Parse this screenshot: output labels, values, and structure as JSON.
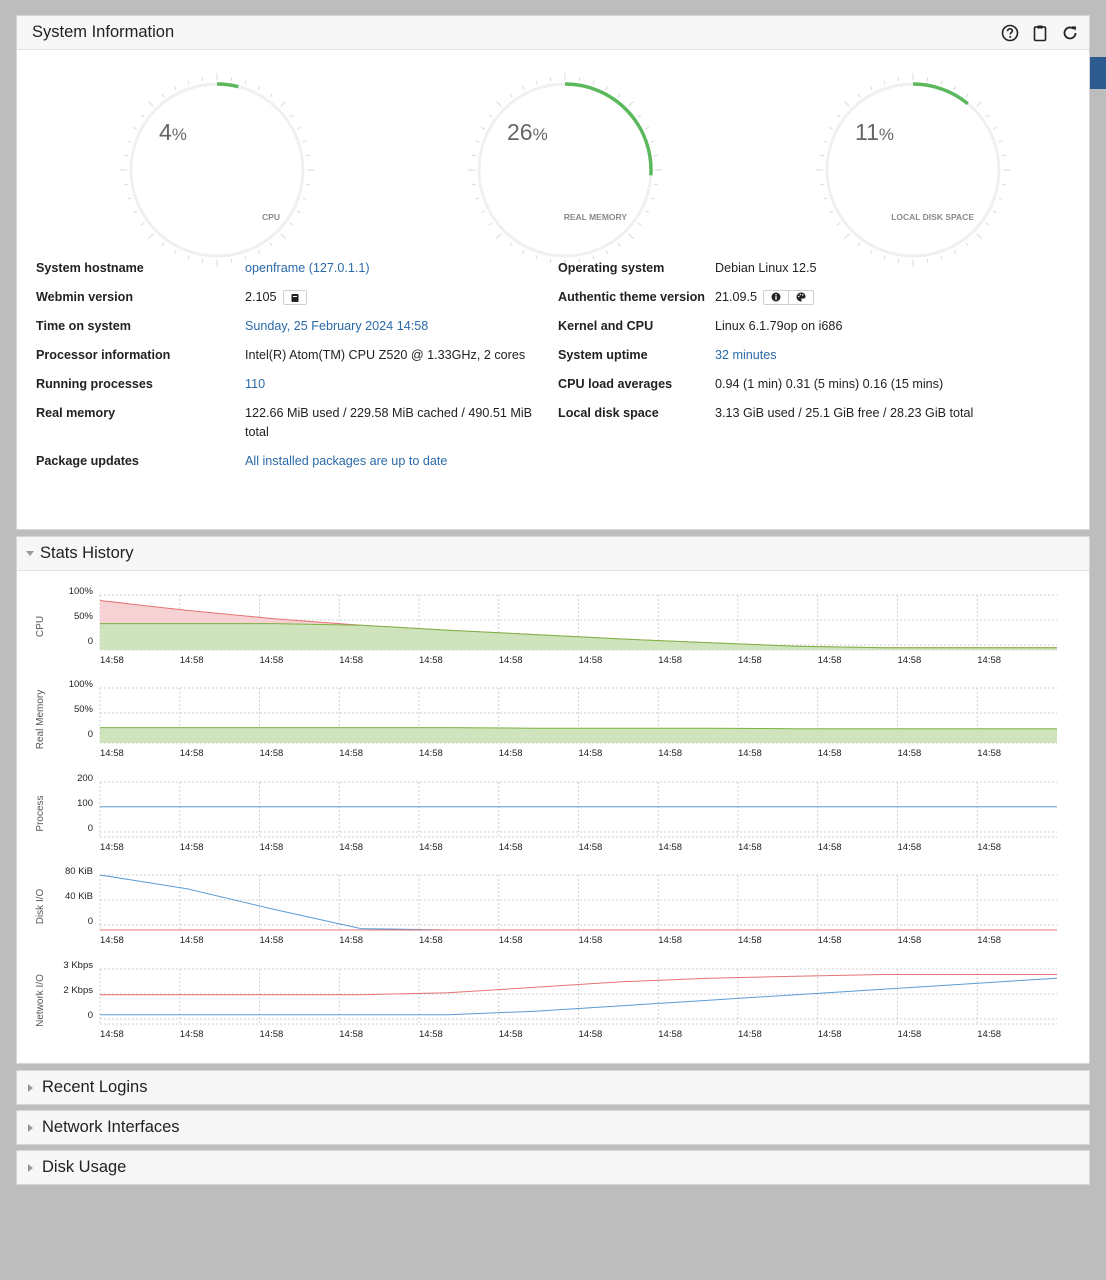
{
  "sysinfo": {
    "title": "System Information",
    "gauges": [
      {
        "value": "4",
        "unit": "%",
        "label": "CPU",
        "fraction": 0.04
      },
      {
        "value": "26",
        "unit": "%",
        "label": "REAL MEMORY",
        "fraction": 0.26
      },
      {
        "value": "11",
        "unit": "%",
        "label": "LOCAL DISK SPACE",
        "fraction": 0.11
      }
    ],
    "left_rows": [
      {
        "label": "System hostname",
        "value": "openframe (127.0.1.1)"
      },
      {
        "label": "Webmin version",
        "value": "2.105"
      },
      {
        "label": "Time on system",
        "value": "Sunday, 25 February 2024 14:58"
      },
      {
        "label": "Processor information",
        "value": "Intel(R) Atom(TM) CPU Z520 @ 1.33GHz, 2 cores"
      },
      {
        "label": "Running processes",
        "value": "110"
      },
      {
        "label": "Real memory",
        "value": "122.66 MiB used / 229.58 MiB cached / 490.51 MiB",
        "value2": "total"
      },
      {
        "label": "Package updates",
        "value": "All installed packages are up to date"
      }
    ],
    "right_rows": [
      {
        "label": "Operating system",
        "value": "Debian Linux 12.5"
      },
      {
        "label": "Authentic theme version",
        "value": "21.09.5"
      },
      {
        "label": "Kernel and CPU",
        "value": "Linux 6.1.79op on i686"
      },
      {
        "label": "System uptime",
        "value": "32 minutes"
      },
      {
        "label": "CPU load averages",
        "value": "0.94 (1 min) 0.31 (5 mins) 0.16 (15 mins)"
      },
      {
        "label": "Local disk space",
        "value": "3.13 GiB used / 25.1 GiB free / 28.23 GiB total"
      }
    ]
  },
  "stats": {
    "title": "Stats History"
  },
  "chart_data": [
    {
      "type": "area",
      "ylabel": "CPU",
      "yticks": [
        "100%",
        "50%",
        "0"
      ],
      "ylim": [
        0,
        100
      ],
      "x": [
        "14:58",
        "14:58",
        "14:58",
        "14:58",
        "14:58",
        "14:58",
        "14:58",
        "14:58",
        "14:58",
        "14:58",
        "14:58",
        "14:58"
      ],
      "series": [
        {
          "name": "",
          "color": "#e57373",
          "fill": "#f6d2d4",
          "values": [
            90,
            72,
            57,
            45,
            36,
            28,
            20,
            13,
            7,
            4,
            4,
            4
          ]
        },
        {
          "name": "",
          "color": "#7cb342",
          "fill": "#cfe3bd",
          "values": [
            48,
            48,
            48,
            45,
            36,
            28,
            20,
            13,
            7,
            4,
            4,
            4
          ]
        }
      ]
    },
    {
      "type": "area",
      "ylabel": "Real Memory",
      "yticks": [
        "100%",
        "50%",
        "0"
      ],
      "ylim": [
        0,
        100
      ],
      "x": [
        "14:58",
        "14:58",
        "14:58",
        "14:58",
        "14:58",
        "14:58",
        "14:58",
        "14:58",
        "14:58",
        "14:58",
        "14:58",
        "14:58"
      ],
      "series": [
        {
          "name": "",
          "color": "#7cb342",
          "fill": "#cfe3bd",
          "values": [
            28,
            28,
            28,
            28,
            28,
            27,
            27,
            27,
            26,
            26,
            26,
            26
          ]
        }
      ]
    },
    {
      "type": "line",
      "ylabel": "Process",
      "yticks": [
        "200",
        "100",
        "0"
      ],
      "ylim": [
        0,
        200
      ],
      "x": [
        "14:58",
        "14:58",
        "14:58",
        "14:58",
        "14:58",
        "14:58",
        "14:58",
        "14:58",
        "14:58",
        "14:58",
        "14:58",
        "14:58"
      ],
      "series": [
        {
          "name": "",
          "color": "#5b9bd5",
          "values": [
            110,
            110,
            110,
            110,
            110,
            110,
            110,
            110,
            110,
            110,
            110,
            110
          ]
        }
      ]
    },
    {
      "type": "line",
      "ylabel": "Disk I/O",
      "yticks": [
        "80 KiB",
        "40 KiB",
        "0"
      ],
      "ylim": [
        0,
        80
      ],
      "x": [
        "14:58",
        "14:58",
        "14:58",
        "14:58",
        "14:58",
        "14:58",
        "14:58",
        "14:58",
        "14:58",
        "14:58",
        "14:58",
        "14:58"
      ],
      "series": [
        {
          "name": "",
          "color": "#5b9bd5",
          "values": [
            80,
            60,
            30,
            2,
            0,
            0,
            0,
            0,
            0,
            0,
            0,
            0
          ]
        },
        {
          "name": "",
          "color": "#e57373",
          "values": [
            0,
            0,
            0,
            0,
            0,
            0,
            0,
            0,
            0,
            0,
            0,
            0
          ]
        }
      ]
    },
    {
      "type": "line",
      "ylabel": "Network I/O",
      "yticks": [
        "3 Kbps",
        "2 Kbps",
        "0"
      ],
      "ylim": [
        0,
        3
      ],
      "x": [
        "14:58",
        "14:58",
        "14:58",
        "14:58",
        "14:58",
        "14:58",
        "14:58",
        "14:58",
        "14:58",
        "14:58",
        "14:58",
        "14:58"
      ],
      "series": [
        {
          "name": "",
          "color": "#e57373",
          "values": [
            1.6,
            1.6,
            1.6,
            1.6,
            1.7,
            2.0,
            2.3,
            2.5,
            2.6,
            2.7,
            2.7,
            2.7
          ]
        },
        {
          "name": "",
          "color": "#5b9bd5",
          "values": [
            0.5,
            0.5,
            0.5,
            0.5,
            0.5,
            0.7,
            1.0,
            1.3,
            1.6,
            1.9,
            2.2,
            2.5
          ]
        }
      ]
    }
  ],
  "collapsed": [
    {
      "title": "Recent Logins"
    },
    {
      "title": "Network Interfaces"
    },
    {
      "title": "Disk Usage"
    }
  ],
  "colors": {
    "gauge": "#5cb85c",
    "link": "#2a6aa8",
    "tab": "#2d5a8f"
  }
}
